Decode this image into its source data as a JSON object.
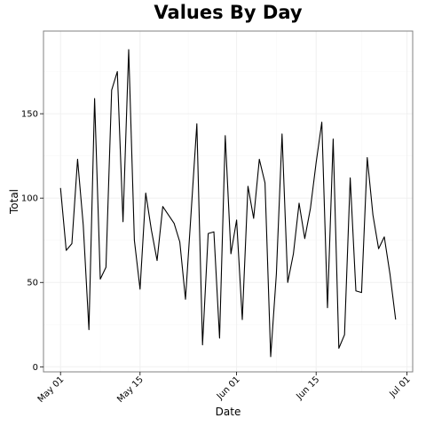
{
  "chart_data": {
    "type": "line",
    "title": "Values By Day",
    "xlabel": "Date",
    "ylabel": "Total",
    "x_axis": {
      "type": "date",
      "range": [
        "2014-04-28",
        "2014-07-02"
      ],
      "ticks": [
        {
          "date": "2014-05-01",
          "label": "May 01"
        },
        {
          "date": "2014-05-15",
          "label": "May 15"
        },
        {
          "date": "2014-06-01",
          "label": "Jun 01"
        },
        {
          "date": "2014-06-15",
          "label": "Jun 15"
        },
        {
          "date": "2014-07-01",
          "label": "Jul 01"
        }
      ]
    },
    "y_axis": {
      "range": [
        -3,
        199
      ],
      "ticks": [
        0,
        50,
        100,
        150
      ],
      "minor_ticks": [
        25,
        75,
        125,
        175
      ]
    },
    "grid": true,
    "series": [
      {
        "color": "#000000",
        "x": [
          "2014-05-01",
          "2014-05-02",
          "2014-05-03",
          "2014-05-04",
          "2014-05-05",
          "2014-05-06",
          "2014-05-07",
          "2014-05-08",
          "2014-05-09",
          "2014-05-10",
          "2014-05-11",
          "2014-05-12",
          "2014-05-13",
          "2014-05-14",
          "2014-05-15",
          "2014-05-16",
          "2014-05-17",
          "2014-05-18",
          "2014-05-19",
          "2014-05-20",
          "2014-05-21",
          "2014-05-22",
          "2014-05-23",
          "2014-05-24",
          "2014-05-25",
          "2014-05-26",
          "2014-05-27",
          "2014-05-28",
          "2014-05-29",
          "2014-05-30",
          "2014-05-31",
          "2014-06-01",
          "2014-06-02",
          "2014-06-03",
          "2014-06-04",
          "2014-06-05",
          "2014-06-06",
          "2014-06-07",
          "2014-06-08",
          "2014-06-09",
          "2014-06-10",
          "2014-06-11",
          "2014-06-12",
          "2014-06-13",
          "2014-06-14",
          "2014-06-15",
          "2014-06-16",
          "2014-06-17",
          "2014-06-18",
          "2014-06-19",
          "2014-06-20",
          "2014-06-21",
          "2014-06-22",
          "2014-06-23",
          "2014-06-24",
          "2014-06-25",
          "2014-06-26",
          "2014-06-27",
          "2014-06-28",
          "2014-06-29",
          "2014-06-30"
        ],
        "values": [
          106,
          69,
          73,
          123,
          84,
          22,
          159,
          52,
          59,
          164,
          175,
          86,
          188,
          75,
          46,
          103,
          81,
          63,
          95,
          90,
          85,
          74,
          40,
          92,
          144,
          13,
          79,
          80,
          17,
          137,
          67,
          87,
          28,
          107,
          88,
          123,
          109,
          6,
          55,
          138,
          50,
          67,
          97,
          76,
          94,
          121,
          145,
          35,
          135,
          11,
          19,
          112,
          45,
          44,
          124,
          90,
          70,
          77,
          55,
          28,
          null
        ]
      }
    ]
  }
}
